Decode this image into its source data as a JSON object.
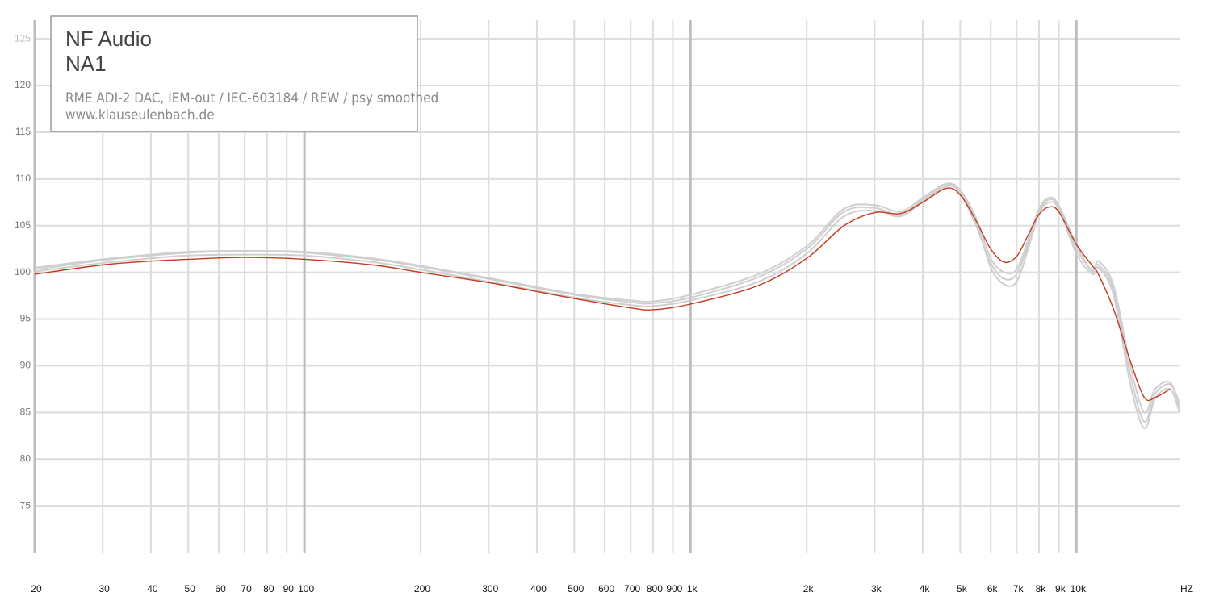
{
  "chart_data": {
    "type": "line",
    "title": "NF Audio",
    "subtitle": "NA1",
    "notes": [
      "RME ADI-2 DAC, IEM-out / IEC-603184 / REW / psy smoothed",
      "www.klauseulenbach.de"
    ],
    "x_label": "HZ",
    "log_x": true,
    "grid": true,
    "xlim": [
      20,
      18500
    ],
    "ylim": [
      70,
      127
    ],
    "yticks": [
      75,
      80,
      85,
      90,
      95,
      100,
      105,
      110,
      115,
      120,
      125
    ],
    "xticks": [
      20,
      30,
      40,
      50,
      60,
      70,
      80,
      90,
      100,
      200,
      300,
      400,
      500,
      600,
      700,
      800,
      900,
      {
        "value": 1000,
        "label": "1k"
      },
      {
        "value": 2000,
        "label": "2k"
      },
      {
        "value": 3000,
        "label": "3k"
      },
      {
        "value": 4000,
        "label": "4k"
      },
      {
        "value": 5000,
        "label": "5k"
      },
      {
        "value": 6000,
        "label": "6k"
      },
      {
        "value": 7000,
        "label": "7k"
      },
      {
        "value": 8000,
        "label": "8k"
      },
      {
        "value": 9000,
        "label": "9k"
      },
      {
        "value": 10000,
        "label": "10k"
      }
    ],
    "x": [
      20,
      30,
      40,
      50,
      70,
      100,
      150,
      200,
      300,
      500,
      700,
      800,
      1000,
      1500,
      2000,
      2500,
      3000,
      3500,
      4000,
      4600,
      5000,
      5500,
      6000,
      6500,
      7000,
      7500,
      8000,
      8500,
      9000,
      10000,
      11000,
      11400,
      12500,
      13800,
      15000,
      16000,
      17500,
      18500
    ],
    "series": [
      {
        "color": "#cfcfcf",
        "values": [
          100.3,
          101.3,
          101.8,
          102.1,
          102.3,
          102.1,
          101.4,
          100.6,
          99.3,
          97.6,
          96.8,
          96.7,
          97.3,
          99.5,
          102.5,
          106.5,
          106.9,
          106.2,
          107.8,
          109.4,
          108.5,
          105.0,
          101.0,
          99.3,
          99.8,
          103.0,
          106.5,
          107.8,
          107.0,
          102.5,
          100.2,
          100.8,
          98.0,
          89.0,
          84.0,
          87.0,
          88.0,
          86.0
        ]
      },
      {
        "color": "#cfcfcf",
        "values": [
          100.1,
          101.0,
          101.5,
          101.8,
          101.9,
          101.8,
          101.1,
          100.3,
          99.0,
          97.3,
          96.5,
          96.4,
          97.0,
          99.0,
          102.0,
          106.0,
          106.6,
          106.0,
          107.6,
          109.2,
          108.6,
          105.4,
          100.5,
          98.7,
          99.0,
          102.5,
          106.3,
          107.5,
          106.8,
          102.0,
          99.8,
          100.5,
          97.5,
          88.0,
          83.3,
          86.5,
          87.5,
          85.0
        ]
      },
      {
        "color": "#cfcfcf",
        "values": [
          100.5,
          101.4,
          101.9,
          102.2,
          102.3,
          102.2,
          101.5,
          100.7,
          99.4,
          97.7,
          97.0,
          96.9,
          97.6,
          99.8,
          102.8,
          106.8,
          107.2,
          106.5,
          108.0,
          109.5,
          108.8,
          105.8,
          101.5,
          100.0,
          100.3,
          103.5,
          106.8,
          108.0,
          107.2,
          103.0,
          100.0,
          101.2,
          98.5,
          90.0,
          85.0,
          87.5,
          88.2,
          85.5
        ]
      },
      {
        "color": "#c23b1e",
        "values": [
          99.8,
          100.8,
          101.2,
          101.4,
          101.6,
          101.4,
          100.8,
          100.0,
          98.9,
          97.2,
          96.2,
          96.0,
          96.6,
          98.6,
          101.5,
          105.0,
          106.4,
          106.3,
          107.5,
          109.0,
          108.3,
          105.5,
          102.5,
          101.1,
          101.7,
          104.0,
          106.2,
          107.0,
          106.5,
          103.0,
          100.7,
          99.8,
          96.0,
          90.5,
          86.6,
          86.6,
          87.5,
          null
        ]
      }
    ]
  }
}
